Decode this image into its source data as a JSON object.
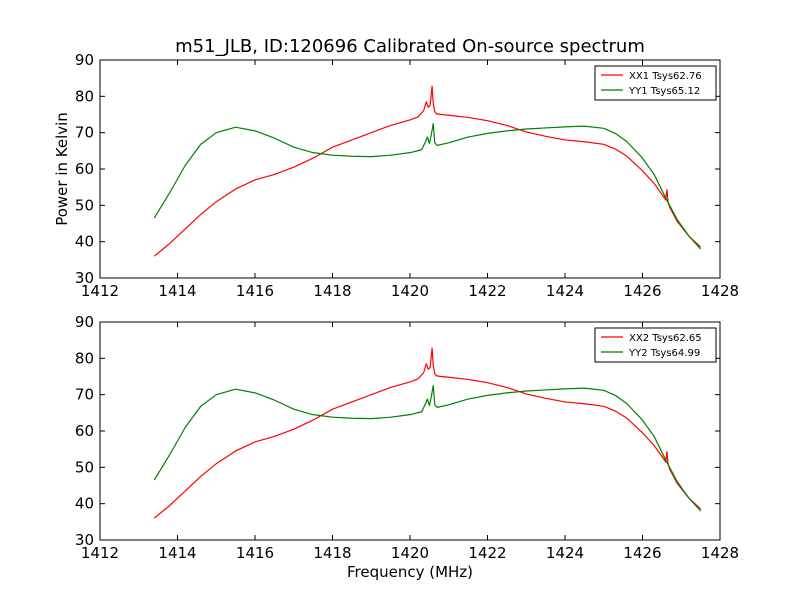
{
  "chart_data": [
    {
      "type": "line",
      "title": "m51_JLB, ID:120696 Calibrated On-source spectrum",
      "xlabel": "",
      "ylabel": "Power in Kelvin",
      "xlim": [
        1412,
        1428
      ],
      "ylim": [
        30,
        90
      ],
      "xticks": [
        1412,
        1414,
        1416,
        1418,
        1420,
        1422,
        1424,
        1426,
        1428
      ],
      "yticks": [
        30,
        40,
        50,
        60,
        70,
        80,
        90
      ],
      "grid": false,
      "legend_position": "top-right",
      "series": [
        {
          "name": "XX1 Tsys62.76",
          "color": "#ff0000",
          "x": [
            1413.4,
            1413.8,
            1414.2,
            1414.6,
            1415.0,
            1415.5,
            1416.0,
            1416.5,
            1417.0,
            1417.5,
            1418.0,
            1418.5,
            1419.0,
            1419.5,
            1420.0,
            1420.2,
            1420.35,
            1420.42,
            1420.47,
            1420.52,
            1420.57,
            1420.6,
            1420.64,
            1420.68,
            1420.8,
            1421.0,
            1421.5,
            1422.0,
            1422.5,
            1423.0,
            1423.5,
            1424.0,
            1424.5,
            1425.0,
            1425.3,
            1425.6,
            1426.0,
            1426.3,
            1426.6,
            1426.63,
            1426.66,
            1426.7,
            1426.9,
            1427.2,
            1427.5
          ],
          "y": [
            36.0,
            39.5,
            43.5,
            47.5,
            51.0,
            54.5,
            57.0,
            58.5,
            60.5,
            63.0,
            66.0,
            68.0,
            70.0,
            72.0,
            73.5,
            74.3,
            76.0,
            78.5,
            77.0,
            77.5,
            82.8,
            78.0,
            75.8,
            75.2,
            75.0,
            74.8,
            74.2,
            73.3,
            72.0,
            70.2,
            69.0,
            68.0,
            67.5,
            66.8,
            65.5,
            63.5,
            59.5,
            56.0,
            51.5,
            54.3,
            51.0,
            49.5,
            45.5,
            41.5,
            38.5
          ]
        },
        {
          "name": "YY1 Tsys65.12",
          "color": "#008000",
          "x": [
            1413.4,
            1413.8,
            1414.2,
            1414.6,
            1415.0,
            1415.5,
            1416.0,
            1416.5,
            1417.0,
            1417.5,
            1418.0,
            1418.5,
            1419.0,
            1419.5,
            1420.0,
            1420.3,
            1420.4,
            1420.45,
            1420.5,
            1420.55,
            1420.6,
            1420.64,
            1420.7,
            1421.0,
            1421.5,
            1422.0,
            1422.5,
            1423.0,
            1423.5,
            1424.0,
            1424.5,
            1425.0,
            1425.3,
            1425.6,
            1426.0,
            1426.3,
            1426.6,
            1426.9,
            1427.2,
            1427.5
          ],
          "y": [
            46.5,
            53.5,
            61.0,
            66.8,
            70.0,
            71.5,
            70.5,
            68.5,
            66.0,
            64.5,
            63.8,
            63.5,
            63.4,
            63.8,
            64.5,
            65.3,
            67.5,
            68.8,
            67.0,
            69.5,
            72.5,
            67.2,
            66.5,
            67.2,
            68.8,
            69.8,
            70.5,
            71.0,
            71.3,
            71.6,
            71.8,
            71.2,
            69.8,
            67.5,
            63.0,
            58.5,
            52.0,
            46.0,
            41.5,
            38.0
          ]
        }
      ]
    },
    {
      "type": "line",
      "title": "",
      "xlabel": "Frequency (MHz)",
      "ylabel": "",
      "xlim": [
        1412,
        1428
      ],
      "ylim": [
        30,
        90
      ],
      "xticks": [
        1412,
        1414,
        1416,
        1418,
        1420,
        1422,
        1424,
        1426,
        1428
      ],
      "yticks": [
        30,
        40,
        50,
        60,
        70,
        80,
        90
      ],
      "grid": false,
      "legend_position": "top-right",
      "series": [
        {
          "name": "XX2 Tsys62.65",
          "color": "#ff0000",
          "x": [
            1413.4,
            1413.8,
            1414.2,
            1414.6,
            1415.0,
            1415.5,
            1416.0,
            1416.5,
            1417.0,
            1417.5,
            1418.0,
            1418.5,
            1419.0,
            1419.5,
            1420.0,
            1420.2,
            1420.35,
            1420.42,
            1420.47,
            1420.52,
            1420.57,
            1420.6,
            1420.64,
            1420.68,
            1420.8,
            1421.0,
            1421.5,
            1422.0,
            1422.5,
            1423.0,
            1423.5,
            1424.0,
            1424.5,
            1425.0,
            1425.3,
            1425.6,
            1426.0,
            1426.3,
            1426.6,
            1426.63,
            1426.66,
            1426.7,
            1426.9,
            1427.2,
            1427.5
          ],
          "y": [
            36.0,
            39.5,
            43.5,
            47.5,
            51.0,
            54.5,
            57.0,
            58.5,
            60.5,
            63.0,
            66.0,
            68.0,
            70.0,
            72.0,
            73.5,
            74.3,
            76.0,
            78.5,
            77.0,
            77.5,
            82.8,
            78.0,
            75.8,
            75.2,
            75.0,
            74.8,
            74.2,
            73.3,
            72.0,
            70.2,
            69.0,
            68.0,
            67.5,
            66.8,
            65.5,
            63.5,
            59.5,
            56.0,
            51.5,
            54.3,
            51.0,
            49.5,
            45.5,
            41.5,
            38.5
          ]
        },
        {
          "name": "YY2 Tsys64.99",
          "color": "#008000",
          "x": [
            1413.4,
            1413.8,
            1414.2,
            1414.6,
            1415.0,
            1415.5,
            1416.0,
            1416.5,
            1417.0,
            1417.5,
            1418.0,
            1418.5,
            1419.0,
            1419.5,
            1420.0,
            1420.3,
            1420.4,
            1420.45,
            1420.5,
            1420.55,
            1420.6,
            1420.64,
            1420.7,
            1421.0,
            1421.5,
            1422.0,
            1422.5,
            1423.0,
            1423.5,
            1424.0,
            1424.5,
            1425.0,
            1425.3,
            1425.6,
            1426.0,
            1426.3,
            1426.6,
            1426.9,
            1427.2,
            1427.5
          ],
          "y": [
            46.5,
            53.5,
            61.0,
            66.8,
            70.0,
            71.5,
            70.5,
            68.5,
            66.0,
            64.5,
            63.8,
            63.5,
            63.4,
            63.8,
            64.5,
            65.3,
            67.5,
            68.8,
            67.0,
            69.5,
            72.5,
            67.2,
            66.5,
            67.2,
            68.8,
            69.8,
            70.5,
            71.0,
            71.3,
            71.6,
            71.8,
            71.2,
            69.8,
            67.5,
            63.0,
            58.5,
            52.0,
            46.0,
            41.5,
            38.0
          ]
        }
      ]
    }
  ]
}
